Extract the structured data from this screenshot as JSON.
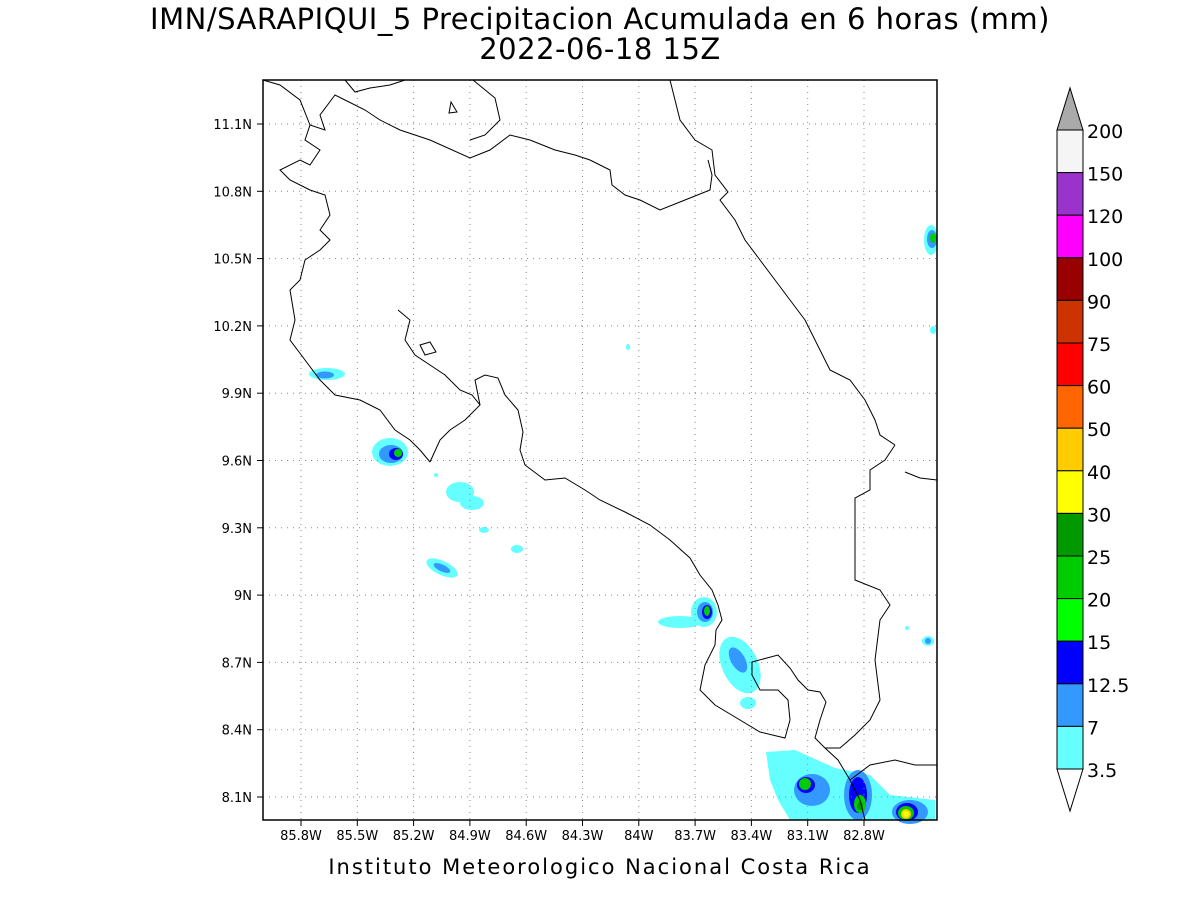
{
  "title": "IMN/SARAPIQUI_5 Precipitacion Acumulada en 6 horas (mm)",
  "subtitle": "2022-06-18 15Z",
  "footer": "Instituto Meteorologico Nacional Costa Rica",
  "map": {
    "lat_labels": [
      "11.1N",
      "10.8N",
      "10.5N",
      "10.2N",
      "9.9N",
      "9.6N",
      "9.3N",
      "9N",
      "8.7N",
      "8.4N",
      "8.1N"
    ],
    "lon_labels": [
      "85.8W",
      "85.5W",
      "85.2W",
      "84.9W",
      "84.6W",
      "84.3W",
      "84W",
      "83.7W",
      "83.4W",
      "83.1W",
      "82.8W"
    ],
    "grid": "dotted"
  },
  "colorbar": {
    "labels": [
      "200",
      "150",
      "120",
      "100",
      "90",
      "75",
      "60",
      "50",
      "40",
      "30",
      "25",
      "20",
      "15",
      "12.5",
      "7",
      "3.5"
    ],
    "colors": [
      "#f5f5f5",
      "#9933cc",
      "#ff00ff",
      "#990000",
      "#cc3300",
      "#ff0000",
      "#ff6600",
      "#ffcc00",
      "#ffff00",
      "#009900",
      "#00cc00",
      "#00ff00",
      "#0000ff",
      "#3399ff",
      "#66ffff"
    ],
    "top_arrow_color": "#aaaaaa",
    "bottom_arrow_color": "#ffffff"
  }
}
